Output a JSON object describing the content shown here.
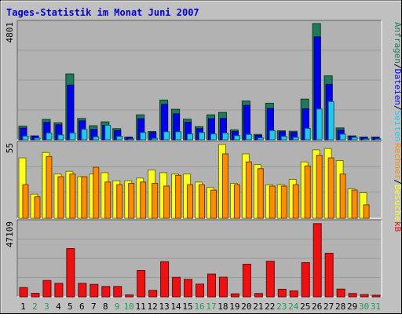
{
  "chart_data": {
    "type": "bar",
    "title": "Tages-Statistik im Monat Juni 2007",
    "colors": {
      "frame_bg": "#c0c0c0",
      "plot_bg": "#b2b2b2",
      "grid": "#9a9a9a",
      "title": "#0000cc",
      "anfragen": "#1f7a5a",
      "dateien": "#0000ee",
      "seiten": "#22c8ee",
      "besuche": "#ffff22",
      "rechner": "#ff8c00",
      "kb": "#ee1111",
      "weekend_label": "#229955",
      "weekday_label": "#000000"
    },
    "categories": [
      "1",
      "2",
      "3",
      "4",
      "5",
      "6",
      "7",
      "8",
      "9",
      "10",
      "11",
      "12",
      "13",
      "14",
      "15",
      "16",
      "17",
      "18",
      "19",
      "20",
      "21",
      "22",
      "23",
      "24",
      "25",
      "26",
      "27",
      "28",
      "29",
      "30",
      "31"
    ],
    "weekend_days": [
      "2",
      "3",
      "9",
      "10",
      "16",
      "17",
      "23",
      "24",
      "30",
      "31"
    ],
    "panels": [
      {
        "id": "top",
        "max_label": "4801",
        "ymax": 4801,
        "side_labels": [
          {
            "text": "Anfragen",
            "color": "#1f7a5a"
          },
          {
            "text": "/",
            "color": "#000000"
          },
          {
            "text": "Dateien",
            "color": "#0000ee"
          },
          {
            "text": "/",
            "color": "#000000"
          },
          {
            "text": "Seiten",
            "color": "#22c8ee"
          }
        ],
        "series": [
          {
            "name": "Anfragen",
            "color": "#1f7a5a",
            "values": [
              560,
              160,
              840,
              700,
              2720,
              880,
              580,
              740,
              460,
              110,
              1030,
              340,
              1640,
              1260,
              850,
              540,
              1030,
              1130,
              410,
              1600,
              220,
              1510,
              370,
              350,
              1680,
              4801,
              2640,
              490,
              160,
              110,
              110
            ]
          },
          {
            "name": "Dateien",
            "color": "#0000ee",
            "values": [
              480,
              150,
              720,
              620,
              2260,
              780,
              430,
              600,
              380,
              100,
              870,
              300,
              1460,
              1070,
              730,
              460,
              870,
              880,
              340,
              1420,
              180,
              1290,
              330,
              300,
              1280,
              4250,
              2290,
              400,
              140,
              100,
              100
            ]
          },
          {
            "name": "Seiten",
            "color": "#22c8ee",
            "values": [
              150,
              70,
              280,
              200,
              280,
              430,
              120,
              600,
              140,
              30,
              300,
              60,
              330,
              330,
              240,
              300,
              240,
              280,
              170,
              220,
              80,
              380,
              140,
              100,
              470,
              1270,
              1580,
              230,
              100,
              40,
              40
            ]
          }
        ]
      },
      {
        "id": "middle",
        "max_label": "55",
        "ymax": 55,
        "side_labels": [
          {
            "text": "Rechner",
            "color": "#ff8c00"
          },
          {
            "text": "/",
            "color": "#000000"
          },
          {
            "text": "Besuche",
            "color": "#ffff22"
          }
        ],
        "series": [
          {
            "name": "Besuche",
            "color": "#ffff22",
            "values": [
              45,
              18,
              49,
              33,
              35,
              31,
              33,
              34,
              28,
              28,
              30,
              36,
              34,
              33,
              33,
              27,
              23,
              55,
              26,
              48,
              40,
              25,
              25,
              29,
              42,
              51,
              52,
              43,
              22,
              19,
              0
            ]
          },
          {
            "name": "Rechner",
            "color": "#ff8c00",
            "values": [
              25,
              16,
              46,
              31,
              33,
              31,
              38,
              27,
              25,
              26,
              27,
              26,
              24,
              32,
              25,
              25,
              21,
              48,
              25,
              42,
              37,
              24,
              24,
              25,
              39,
              47,
              45,
              33,
              21,
              10,
              0
            ]
          }
        ]
      },
      {
        "id": "bottom",
        "max_label": "47109",
        "ymax": 47109,
        "side_labels": [
          {
            "text": "kB",
            "color": "#ee1111"
          }
        ],
        "series": [
          {
            "name": "kB",
            "color": "#ee1111",
            "values": [
              5900,
              2200,
              10400,
              8600,
              30800,
              8600,
              7900,
              6600,
              6600,
              1200,
              16800,
              4100,
              22400,
              12400,
              11100,
              8100,
              14500,
              12500,
              1900,
              20800,
              2100,
              22700,
              4800,
              3800,
              21800,
              46700,
              27800,
              4900,
              2100,
              1400,
              1000
            ]
          }
        ]
      }
    ]
  }
}
